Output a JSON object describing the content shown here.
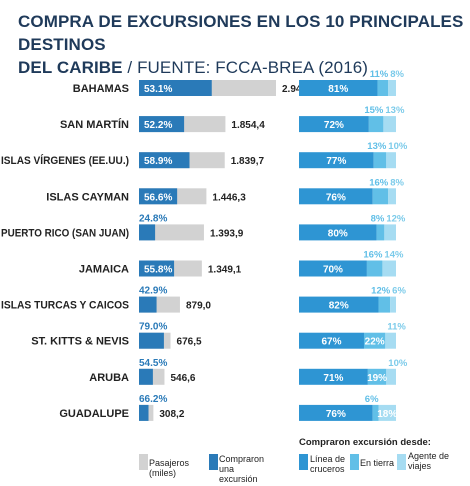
{
  "title_line1": "COMPRA DE EXCURSIONES EN LOS 10 PRINCIPALES DESTINOS",
  "title_line2_bold": "DEL CARIBE",
  "title_line2_rest": " / FUENTE: FCCA-BREA (2016)",
  "colors": {
    "purchased": "#2a7ab8",
    "passengers": "#d2d2d2",
    "line": "#2e95d3",
    "shore": "#61bfe7",
    "agent": "#a6dcf2",
    "text": "#222222",
    "purchased_label": "#2a7ab8",
    "agent_label": "#7ccbea"
  },
  "chart_data": [
    {
      "type": "bar",
      "orientation": "horizontal",
      "categories": [
        "BAHAMAS",
        "SAN MARTÍN",
        "ISLAS VÍRGENES (EE.UU.)",
        "ISLAS CAYMAN",
        "PUERTO RICO (SAN JUAN)",
        "JAMAICA",
        "ISLAS TURCAS Y CAICOS",
        "ST. KITTS & NEVIS",
        "ARUBA",
        "GUADALUPE"
      ],
      "passengers": [
        2940.0,
        1854.4,
        1839.7,
        1446.3,
        1393.9,
        1349.1,
        879.0,
        676.5,
        546.6,
        308.2
      ],
      "passenger_labels": [
        "2.940,0",
        "1.854,4",
        "1.839,7",
        "1.446,3",
        "1.393,9",
        "1.349,1",
        "879,0",
        "676,5",
        "546,6",
        "308,2"
      ],
      "purchased_pct": [
        53.1,
        52.2,
        58.9,
        56.6,
        24.8,
        55.8,
        42.9,
        79.0,
        54.5,
        66.2
      ],
      "purchased_labels": [
        "53.1%",
        "52.2%",
        "58.9%",
        "56.6%",
        "24.8%",
        "55.8%",
        "42.9%",
        "79.0%",
        "54.5%",
        "66.2%"
      ],
      "legend": [
        "Pasajeros (miles)",
        "Compraron una excursión"
      ]
    },
    {
      "type": "bar",
      "stacked": true,
      "orientation": "horizontal",
      "categories": [
        "BAHAMAS",
        "SAN MARTÍN",
        "ISLAS VÍRGENES (EE.UU.)",
        "ISLAS CAYMAN",
        "PUERTO RICO (SAN JUAN)",
        "JAMAICA",
        "ISLAS TURCAS Y CAICOS",
        "ST. KITTS & NEVIS",
        "ARUBA",
        "GUADALUPE"
      ],
      "legend_title": "Compraron excursión desde:",
      "series": [
        {
          "name": "Línea de cruceros",
          "values": [
            81,
            72,
            77,
            76,
            80,
            70,
            82,
            67,
            71,
            76
          ],
          "labels": [
            "81%",
            "72%",
            "77%",
            "76%",
            "80%",
            "70%",
            "82%",
            "67%",
            "71%",
            "76%"
          ]
        },
        {
          "name": "En tierra",
          "values": [
            11,
            15,
            13,
            16,
            8,
            16,
            12,
            22,
            19,
            6
          ],
          "labels": [
            "11%",
            "15%",
            "13%",
            "16%",
            "8%",
            "16%",
            "12%",
            "22%",
            "19%",
            "6%"
          ]
        },
        {
          "name": "Agente de viajes",
          "values": [
            8,
            13,
            10,
            8,
            12,
            14,
            6,
            11,
            10,
            18
          ],
          "labels": [
            "8%",
            "13%",
            "10%",
            "8%",
            "12%",
            "14%",
            "6%",
            "11%",
            "10%",
            "18%"
          ]
        }
      ]
    }
  ]
}
